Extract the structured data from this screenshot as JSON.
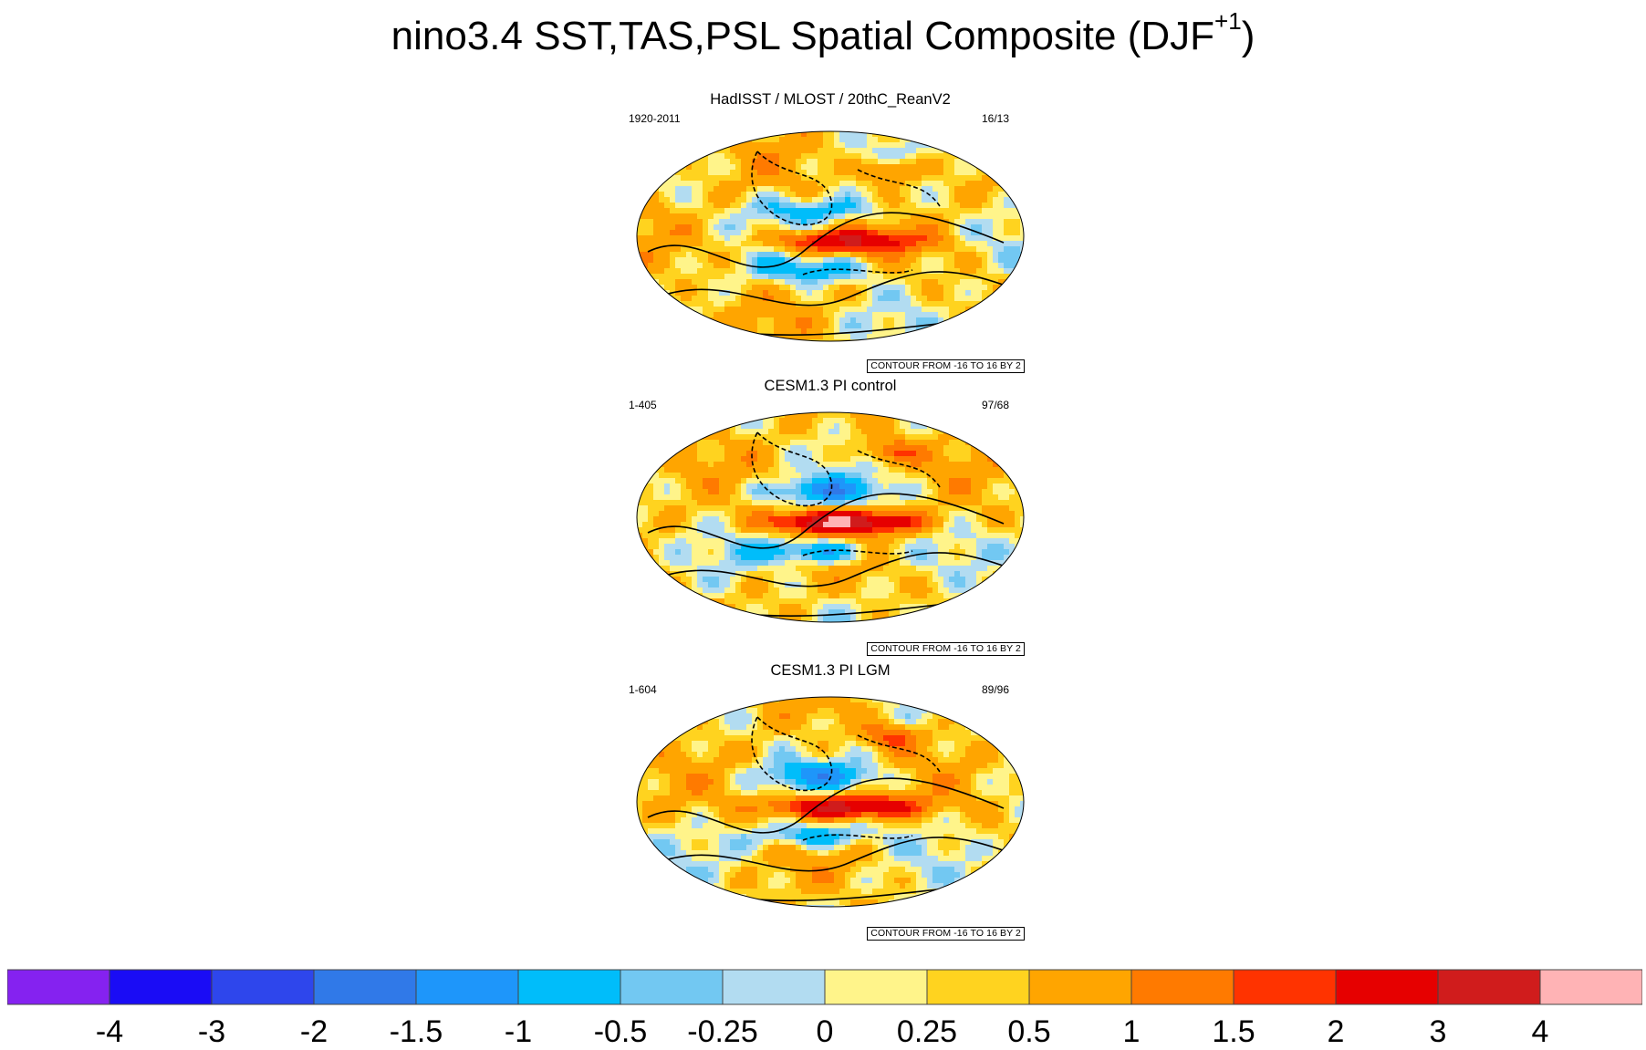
{
  "title": {
    "main": "nino3.4 SST,TAS,PSL Spatial Composite (DJF",
    "sup": "+1",
    "close": ")"
  },
  "panels": [
    {
      "title": "HadISST / MLOST / 20thC_ReanV2",
      "period": "1920-2011",
      "count": "16/13",
      "contour_note": "CONTOUR FROM -16 TO 16 BY 2"
    },
    {
      "title": "CESM1.3 PI control",
      "period": "1-405",
      "count": "97/68",
      "contour_note": "CONTOUR FROM -16 TO 16 BY 2"
    },
    {
      "title": "CESM1.3 PI LGM",
      "period": "1-604",
      "count": "89/96",
      "contour_note": "CONTOUR FROM -16 TO 16 BY 2"
    }
  ],
  "colorbar": {
    "colors": [
      "#8522f0",
      "#1a0cf5",
      "#2e46ec",
      "#3079e8",
      "#1e96fa",
      "#00bdfa",
      "#72c8f2",
      "#b2dcf1",
      "#fff48a",
      "#ffd31f",
      "#ffa500",
      "#ff7a00",
      "#ff3300",
      "#e60000",
      "#d01c1c",
      "#ffb3b5"
    ],
    "labels": [
      "-4",
      "-3",
      "-2",
      "-1.5",
      "-1",
      "-0.5",
      "-0.25",
      "0",
      "0.25",
      "0.5",
      "1",
      "1.5",
      "2",
      "3",
      "4"
    ]
  }
}
